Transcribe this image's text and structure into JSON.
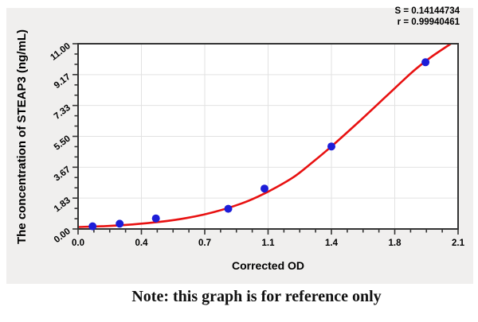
{
  "panel": {
    "bg": "#f0efee",
    "plot_bg": "#ffffff",
    "grid_color": "#e2e2e2",
    "frame_color": "#333333"
  },
  "note": "Note: this graph is for reference only",
  "chart_data": {
    "type": "scatter",
    "title": "",
    "xlabel": "Corrected OD",
    "ylabel": "The concentration of STEAP3 (ng/mL)",
    "xlim": [
      0,
      2.1
    ],
    "ylim": [
      0,
      11
    ],
    "grid": true,
    "legend": "none",
    "stats": {
      "S": "S = 0.14144734",
      "r": "r = 0.99940461"
    },
    "x_ticks": {
      "values": [
        0,
        0.35,
        0.7,
        1.05,
        1.4,
        1.75,
        2.1
      ],
      "labels": [
        "0.0",
        "0.4",
        "0.7",
        "1.1",
        "1.4",
        "1.8",
        "2.1"
      ],
      "minors_between": 3
    },
    "y_ticks": {
      "values": [
        0,
        1.8333,
        3.6667,
        5.5,
        7.3333,
        9.1667,
        11
      ],
      "labels": [
        "0.00",
        "1.83",
        "3.67",
        "5.50",
        "7.33",
        "9.17",
        "11.00"
      ],
      "minors_between": 2
    },
    "series": [
      {
        "name": "standard-points",
        "type": "scatter",
        "color": "#1d1dd8",
        "points": [
          [
            0.08,
            0.16
          ],
          [
            0.23,
            0.31
          ],
          [
            0.43,
            0.63
          ],
          [
            0.83,
            1.2
          ],
          [
            1.03,
            2.4
          ],
          [
            1.4,
            4.9
          ],
          [
            1.92,
            9.9
          ]
        ]
      },
      {
        "name": "fitted-curve",
        "type": "line",
        "color": "#e81111",
        "points": [
          [
            0,
            0.12
          ],
          [
            0.15,
            0.17
          ],
          [
            0.3,
            0.27
          ],
          [
            0.45,
            0.42
          ],
          [
            0.6,
            0.65
          ],
          [
            0.75,
            1.0
          ],
          [
            0.9,
            1.5
          ],
          [
            1.0,
            1.95
          ],
          [
            1.1,
            2.5
          ],
          [
            1.2,
            3.15
          ],
          [
            1.3,
            4.0
          ],
          [
            1.4,
            4.9
          ],
          [
            1.55,
            6.35
          ],
          [
            1.7,
            7.85
          ],
          [
            1.85,
            9.35
          ],
          [
            1.95,
            10.2
          ],
          [
            2.06,
            11.0
          ]
        ]
      }
    ]
  }
}
